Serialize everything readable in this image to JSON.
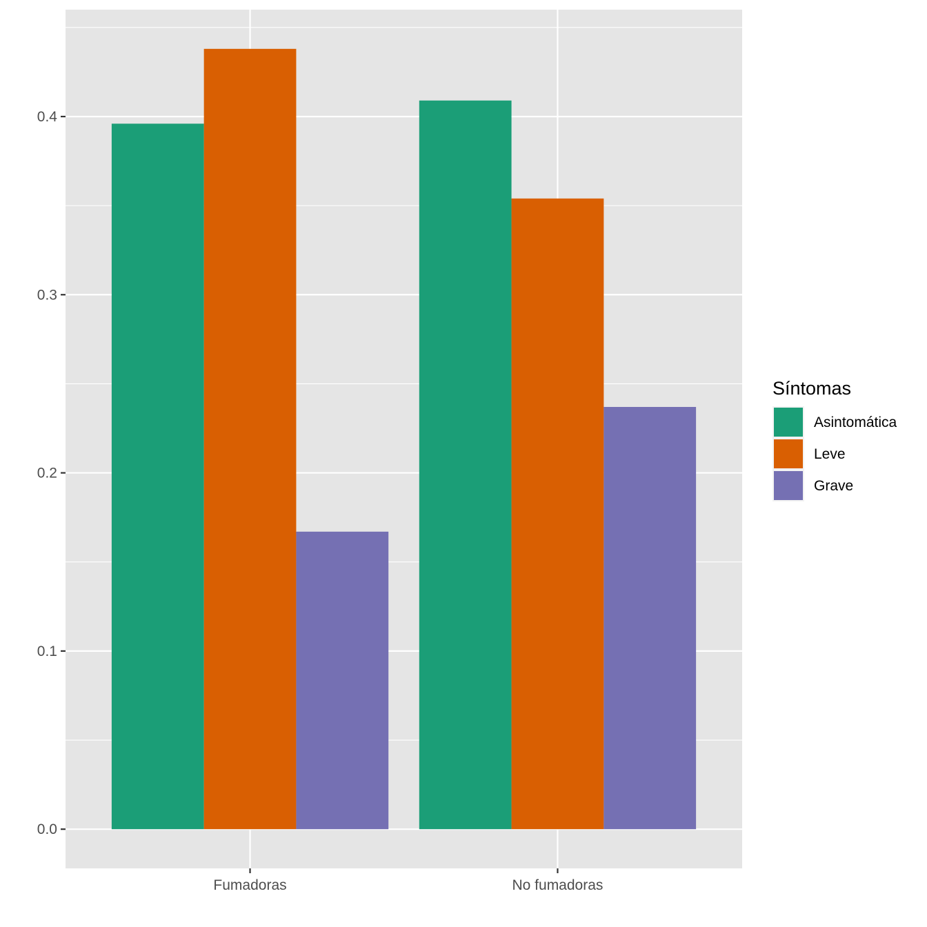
{
  "chart_data": {
    "type": "bar",
    "categories": [
      "Fumadoras",
      "No fumadoras"
    ],
    "series": [
      {
        "name": "Asintomática",
        "values": [
          0.396,
          0.409
        ],
        "color": "#1B9E77"
      },
      {
        "name": "Leve",
        "values": [
          0.438,
          0.354
        ],
        "color": "#D95F02"
      },
      {
        "name": "Grave",
        "values": [
          0.167,
          0.237
        ],
        "color": "#7570B3"
      }
    ],
    "title": "",
    "xlabel": "",
    "ylabel": "",
    "ylim": [
      -0.022,
      0.46
    ],
    "yticks": [
      "0.0",
      "0.1",
      "0.2",
      "0.3",
      "0.4"
    ],
    "grid": true,
    "legend": {
      "title": "Síntomas",
      "position": "right"
    },
    "panel_background": "#E5E5E5",
    "grid_color": "#FFFFFF"
  }
}
